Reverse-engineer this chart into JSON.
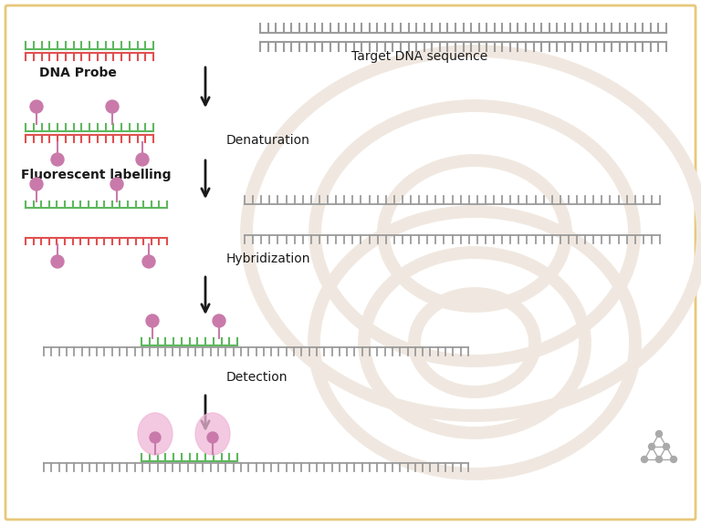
{
  "bg_color": "#ffffff",
  "border_color": "#e8c87a",
  "dna_gray": "#9b9b9b",
  "dna_green": "#5db85d",
  "dna_red": "#e05050",
  "fluorescent_color": "#c97aaa",
  "fluorescent_glow": "#f0b8d8",
  "arrow_color": "#1a1a1a",
  "text_color": "#1a1a1a",
  "label_dna_probe": "DNA Probe",
  "label_fluorescent": "Fluorescent labelling",
  "label_target": "Target DNA sequence",
  "label_denaturation": "Denaturation",
  "label_hybridization": "Hybridization",
  "label_detection": "Detection",
  "watermark_color": "#f0e8e0"
}
